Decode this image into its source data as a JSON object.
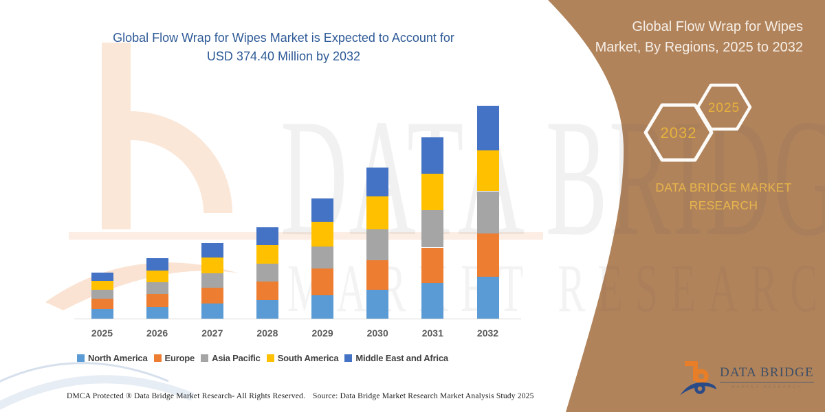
{
  "title": {
    "line1": "Global Flow Wrap for Wipes Market is Expected to Account for",
    "line2": "USD 374.40 Million by 2032"
  },
  "watermark": {
    "line1": "DATA BRIDGE",
    "line2": "MARKET RESEARCH"
  },
  "panel": {
    "title_line1": "Global Flow Wrap for Wipes",
    "title_line2": "Market, By Regions, 2025 to 2032",
    "brand": "DATA BRIDGE MARKET RESEARCH"
  },
  "hexagons": {
    "big": {
      "label": "2032"
    },
    "small": {
      "label": "2025"
    }
  },
  "logo": {
    "wordmark": "DATA BRIDGE",
    "subtext": "MARKET RESEARCH"
  },
  "footer": {
    "dmca": "DMCA Protected ® Data Bridge Market Research-  All Rights Reserved.",
    "source": "Source: Data Bridge Market Research  Market Analysis Study 2025"
  },
  "colors": {
    "panel_brown": "#B1835B",
    "title_blue": "#2E5A97",
    "brand_gold": "#E8B54B",
    "hex_gold": "#E7B23B",
    "axis_line": "#D9D9D9",
    "tick_text": "#595959",
    "legend_text": "#404040"
  },
  "chart_data": {
    "type": "bar",
    "stacked": true,
    "title": "Global Flow Wrap for Wipes Market is Expected to Account for USD 374.40 Million by 2032",
    "unit": "USD Million",
    "xlabel": "",
    "ylabel": "",
    "categories": [
      "2025",
      "2026",
      "2027",
      "2028",
      "2029",
      "2030",
      "2031",
      "2032"
    ],
    "series": [
      {
        "name": "North America",
        "color": "#5B9BD5",
        "values": [
          17,
          21,
          27,
          33,
          41,
          51,
          63,
          74
        ]
      },
      {
        "name": "Europe",
        "color": "#ED7D31",
        "values": [
          18,
          22,
          27,
          32,
          47,
          52,
          62,
          76
        ]
      },
      {
        "name": "Asia Pacific",
        "color": "#A5A5A5",
        "values": [
          16,
          21,
          26,
          32,
          39,
          54,
          66,
          74
        ]
      },
      {
        "name": "South America",
        "color": "#FFC000",
        "values": [
          15,
          21,
          27,
          32,
          43,
          58,
          64,
          72.4
        ]
      },
      {
        "name": "Middle East and Africa",
        "color": "#4472C4",
        "values": [
          15,
          21,
          26,
          32,
          42,
          51,
          64,
          78
        ]
      }
    ],
    "approx_totals": [
      81,
      106,
      133,
      161,
      212,
      266,
      319,
      374.4
    ],
    "ylim": [
      0,
      390
    ],
    "grid": false,
    "legend_position": "bottom",
    "note": "Regional values estimated from bar segment heights; 2032 total stated as USD 374.40 Million"
  }
}
